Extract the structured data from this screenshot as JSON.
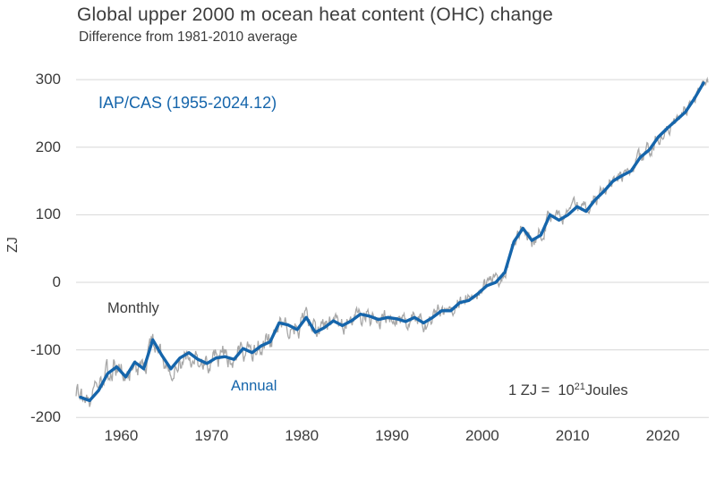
{
  "title": "Global upper 2000 m ocean heat content (OHC) change",
  "subtitle": "Difference from 1981-2010 average",
  "ylabel": "ZJ",
  "annotations": {
    "series_source": "IAP/CAS (1955-2024.12)",
    "monthly_label": "Monthly",
    "annual_label": "Annual",
    "unit_prefix": "1 ZJ =",
    "unit_base": "10",
    "unit_exponent": "21",
    "unit_suffix": "Joules"
  },
  "colors": {
    "annual": "#1565ab",
    "monthly": "#a8a8a8",
    "text": "#3c3c3c",
    "grid": "#d7d7d7"
  },
  "chart_data": {
    "type": "line",
    "title": "Global upper 2000 m ocean heat content (OHC) change",
    "subtitle": "Difference from 1981-2010 average",
    "xlabel": "",
    "ylabel": "ZJ",
    "xlim": [
      1954.5,
      2025.8
    ],
    "ylim": [
      -200,
      300
    ],
    "yticks": [
      300,
      200,
      100,
      0,
      -100,
      -200
    ],
    "xticks": [
      1960,
      1970,
      1980,
      1990,
      2000,
      2010,
      2020
    ],
    "grid": "horizontal",
    "legend_position": "in-plot text labels",
    "years": [
      1955,
      1956,
      1957,
      1958,
      1959,
      1960,
      1961,
      1962,
      1963,
      1964,
      1965,
      1966,
      1967,
      1968,
      1969,
      1970,
      1971,
      1972,
      1973,
      1974,
      1975,
      1976,
      1977,
      1978,
      1979,
      1980,
      1981,
      1982,
      1983,
      1984,
      1985,
      1986,
      1987,
      1988,
      1989,
      1990,
      1991,
      1992,
      1993,
      1994,
      1995,
      1996,
      1997,
      1998,
      1999,
      2000,
      2001,
      2002,
      2003,
      2004,
      2005,
      2006,
      2007,
      2008,
      2009,
      2010,
      2011,
      2012,
      2013,
      2014,
      2015,
      2016,
      2017,
      2018,
      2019,
      2020,
      2021,
      2022,
      2023,
      2024
    ],
    "series": [
      {
        "name": "Annual",
        "values": [
          -170,
          -175,
          -160,
          -135,
          -125,
          -140,
          -118,
          -128,
          -85,
          -108,
          -128,
          -112,
          -104,
          -114,
          -120,
          -112,
          -110,
          -114,
          -98,
          -104,
          -94,
          -88,
          -60,
          -63,
          -70,
          -52,
          -74,
          -67,
          -57,
          -64,
          -57,
          -47,
          -50,
          -55,
          -52,
          -54,
          -58,
          -52,
          -60,
          -52,
          -42,
          -42,
          -30,
          -27,
          -17,
          -5,
          0,
          15,
          60,
          80,
          62,
          70,
          100,
          92,
          100,
          112,
          105,
          122,
          135,
          150,
          158,
          165,
          185,
          196,
          215,
          228,
          240,
          252,
          272,
          295
        ]
      },
      {
        "name": "Monthly",
        "values": "fluctuates around Annual series (rendered as thin gray line, approx. ±10–25 ZJ)"
      }
    ]
  }
}
